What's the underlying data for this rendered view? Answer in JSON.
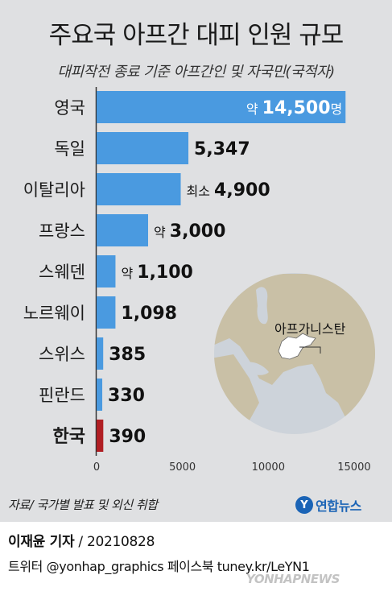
{
  "header": {
    "title": "주요국 아프간 대피 인원 규모",
    "subtitle": "대피작전 종료 기준 아프간인 및 자국민(국적자)"
  },
  "chart_data": {
    "type": "bar",
    "orientation": "horizontal",
    "categories": [
      "영국",
      "독일",
      "이탈리아",
      "프랑스",
      "스웨덴",
      "노르웨이",
      "스위스",
      "핀란드",
      "한국"
    ],
    "values": [
      14500,
      5347,
      4900,
      3000,
      1100,
      1098,
      385,
      330,
      390
    ],
    "value_labels": [
      {
        "prefix": "약 ",
        "number": "14,500",
        "suffix": "명"
      },
      {
        "prefix": "",
        "number": "5,347",
        "suffix": ""
      },
      {
        "prefix": "최소 ",
        "number": "4,900",
        "suffix": ""
      },
      {
        "prefix": "약 ",
        "number": "3,000",
        "suffix": ""
      },
      {
        "prefix": "약 ",
        "number": "1,100",
        "suffix": ""
      },
      {
        "prefix": "",
        "number": "1,098",
        "suffix": ""
      },
      {
        "prefix": "",
        "number": "385",
        "suffix": ""
      },
      {
        "prefix": "",
        "number": "330",
        "suffix": ""
      },
      {
        "prefix": "",
        "number": "390",
        "suffix": ""
      }
    ],
    "highlight_index": 8,
    "xlim": [
      0,
      15500
    ],
    "xticks": [
      0,
      5000,
      10000,
      15000
    ],
    "xtick_labels": [
      "0",
      "5000",
      "10000",
      "15000"
    ],
    "colors": {
      "bar": "#4a9ae0",
      "highlight": "#b01e23",
      "panel": "#dfe0e2"
    },
    "grid": false,
    "legend": "none"
  },
  "map_inset": {
    "label": "아프가니스탄",
    "colors": {
      "sea": "#cdd3da",
      "land": "#c9c0a6",
      "afghanistan": "#ffffff"
    }
  },
  "footer": {
    "source": "자료/ 국가별 발표 및 외신 취합",
    "logo_text": "연합뉴스",
    "reporter": "이재윤 기자",
    "date": " / 20210828",
    "sns": "트위터 @yonhap_graphics  페이스북 tuney.kr/LeYN1",
    "watermark": "YONHAPNEWS"
  }
}
